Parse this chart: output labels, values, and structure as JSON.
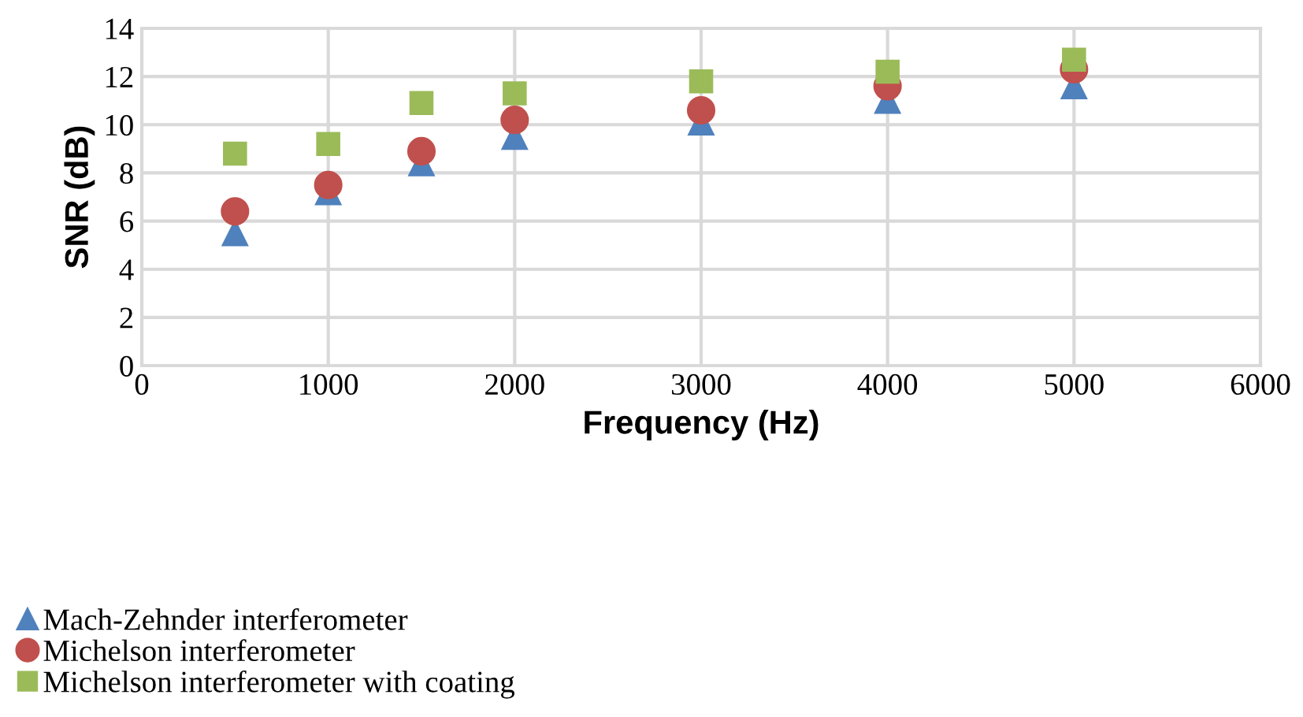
{
  "chart_data": {
    "type": "scatter",
    "xlabel": "Frequency (Hz)",
    "ylabel": "SNR (dB)",
    "x": [
      500,
      1000,
      1500,
      2000,
      3000,
      4000,
      5000
    ],
    "series": [
      {
        "name": "Mach-Zehnder interferometer",
        "color": "#4f81bd",
        "marker": "triangle",
        "values": [
          5.5,
          7.2,
          8.4,
          9.5,
          10.1,
          11.0,
          11.6
        ]
      },
      {
        "name": "Michelson interferometer",
        "color": "#c0504d",
        "marker": "circle",
        "values": [
          6.4,
          7.5,
          8.9,
          10.2,
          10.6,
          11.6,
          12.3
        ]
      },
      {
        "name": "Michelson interferometer with coating",
        "color": "#9bbb59",
        "marker": "square",
        "values": [
          8.8,
          9.2,
          10.9,
          11.3,
          11.8,
          12.2,
          12.7
        ]
      }
    ],
    "xlim": [
      0,
      6000
    ],
    "xticks": [
      0,
      1000,
      2000,
      3000,
      4000,
      5000,
      6000
    ],
    "ylim": [
      0,
      14
    ],
    "yticks": [
      0,
      2,
      4,
      6,
      8,
      10,
      12,
      14
    ],
    "grid": true,
    "legend": "bottom left"
  }
}
